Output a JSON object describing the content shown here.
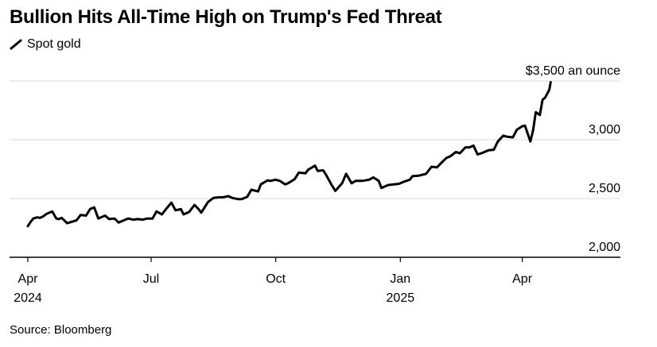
{
  "title": "Bullion Hits All-Time High on Trump's Fed Threat",
  "legend": {
    "label": "Spot gold",
    "icon": "line-swatch-icon"
  },
  "source": "Source: Bloomberg",
  "colors": {
    "line": "#000000",
    "grid": "#d9d9d9",
    "axis": "#000000",
    "text": "#000000"
  },
  "chart_data": {
    "type": "line",
    "title": "Bullion Hits All-Time High on Trump's Fed Threat",
    "xlabel": "",
    "ylabel": "",
    "ylim": [
      2000,
      3500
    ],
    "xlim": [
      "2024-04-01",
      "2025-05-10"
    ],
    "grid": true,
    "legend_position": "top-left",
    "y_ticks": [
      {
        "value": 2000,
        "label": "2,000"
      },
      {
        "value": 2500,
        "label": "2,500"
      },
      {
        "value": 3000,
        "label": "3,000"
      },
      {
        "value": 3500,
        "label": "$3,500 an ounce"
      }
    ],
    "x_ticks": [
      {
        "date": "2024-04-01",
        "label": "Apr",
        "sublabel": "2024"
      },
      {
        "date": "2024-07-01",
        "label": "Jul",
        "sublabel": ""
      },
      {
        "date": "2024-10-01",
        "label": "Oct",
        "sublabel": ""
      },
      {
        "date": "2025-01-01",
        "label": "Jan",
        "sublabel": "2025"
      },
      {
        "date": "2025-04-01",
        "label": "Apr",
        "sublabel": ""
      }
    ],
    "series": [
      {
        "name": "Spot gold",
        "points": [
          [
            "2024-04-01",
            2265
          ],
          [
            "2024-04-03",
            2300
          ],
          [
            "2024-04-05",
            2330
          ],
          [
            "2024-04-08",
            2340
          ],
          [
            "2024-04-10",
            2335
          ],
          [
            "2024-04-12",
            2345
          ],
          [
            "2024-04-15",
            2370
          ],
          [
            "2024-04-17",
            2380
          ],
          [
            "2024-04-19",
            2390
          ],
          [
            "2024-04-22",
            2330
          ],
          [
            "2024-04-24",
            2325
          ],
          [
            "2024-04-26",
            2335
          ],
          [
            "2024-04-30",
            2290
          ],
          [
            "2024-05-03",
            2300
          ],
          [
            "2024-05-07",
            2315
          ],
          [
            "2024-05-10",
            2360
          ],
          [
            "2024-05-14",
            2355
          ],
          [
            "2024-05-17",
            2410
          ],
          [
            "2024-05-20",
            2425
          ],
          [
            "2024-05-23",
            2330
          ],
          [
            "2024-05-28",
            2355
          ],
          [
            "2024-05-31",
            2325
          ],
          [
            "2024-06-04",
            2330
          ],
          [
            "2024-06-07",
            2295
          ],
          [
            "2024-06-11",
            2315
          ],
          [
            "2024-06-14",
            2330
          ],
          [
            "2024-06-18",
            2320
          ],
          [
            "2024-06-21",
            2325
          ],
          [
            "2024-06-25",
            2320
          ],
          [
            "2024-06-28",
            2330
          ],
          [
            "2024-07-02",
            2330
          ],
          [
            "2024-07-05",
            2390
          ],
          [
            "2024-07-09",
            2365
          ],
          [
            "2024-07-12",
            2410
          ],
          [
            "2024-07-16",
            2465
          ],
          [
            "2024-07-19",
            2400
          ],
          [
            "2024-07-23",
            2410
          ],
          [
            "2024-07-25",
            2365
          ],
          [
            "2024-07-29",
            2385
          ],
          [
            "2024-08-02",
            2445
          ],
          [
            "2024-08-05",
            2410
          ],
          [
            "2024-08-07",
            2380
          ],
          [
            "2024-08-12",
            2470
          ],
          [
            "2024-08-16",
            2505
          ],
          [
            "2024-08-20",
            2510
          ],
          [
            "2024-08-23",
            2510
          ],
          [
            "2024-08-27",
            2520
          ],
          [
            "2024-08-30",
            2505
          ],
          [
            "2024-09-03",
            2495
          ],
          [
            "2024-09-06",
            2495
          ],
          [
            "2024-09-10",
            2515
          ],
          [
            "2024-09-13",
            2575
          ],
          [
            "2024-09-18",
            2560
          ],
          [
            "2024-09-20",
            2620
          ],
          [
            "2024-09-25",
            2655
          ],
          [
            "2024-09-27",
            2650
          ],
          [
            "2024-10-01",
            2660
          ],
          [
            "2024-10-04",
            2650
          ],
          [
            "2024-10-08",
            2620
          ],
          [
            "2024-10-10",
            2630
          ],
          [
            "2024-10-15",
            2665
          ],
          [
            "2024-10-18",
            2720
          ],
          [
            "2024-10-23",
            2715
          ],
          [
            "2024-10-25",
            2745
          ],
          [
            "2024-10-30",
            2780
          ],
          [
            "2024-11-01",
            2735
          ],
          [
            "2024-11-05",
            2740
          ],
          [
            "2024-11-07",
            2705
          ],
          [
            "2024-11-11",
            2620
          ],
          [
            "2024-11-14",
            2565
          ],
          [
            "2024-11-19",
            2630
          ],
          [
            "2024-11-22",
            2710
          ],
          [
            "2024-11-26",
            2630
          ],
          [
            "2024-11-29",
            2650
          ],
          [
            "2024-12-04",
            2650
          ],
          [
            "2024-12-09",
            2660
          ],
          [
            "2024-12-12",
            2680
          ],
          [
            "2024-12-16",
            2650
          ],
          [
            "2024-12-18",
            2590
          ],
          [
            "2024-12-23",
            2615
          ],
          [
            "2024-12-27",
            2620
          ],
          [
            "2024-12-31",
            2625
          ],
          [
            "2025-01-03",
            2640
          ],
          [
            "2025-01-08",
            2660
          ],
          [
            "2025-01-10",
            2690
          ],
          [
            "2025-01-15",
            2695
          ],
          [
            "2025-01-20",
            2710
          ],
          [
            "2025-01-24",
            2770
          ],
          [
            "2025-01-28",
            2765
          ],
          [
            "2025-01-31",
            2800
          ],
          [
            "2025-02-04",
            2845
          ],
          [
            "2025-02-07",
            2860
          ],
          [
            "2025-02-11",
            2895
          ],
          [
            "2025-02-14",
            2885
          ],
          [
            "2025-02-18",
            2935
          ],
          [
            "2025-02-21",
            2935
          ],
          [
            "2025-02-24",
            2950
          ],
          [
            "2025-02-27",
            2875
          ],
          [
            "2025-03-03",
            2890
          ],
          [
            "2025-03-07",
            2910
          ],
          [
            "2025-03-11",
            2915
          ],
          [
            "2025-03-14",
            2985
          ],
          [
            "2025-03-18",
            3035
          ],
          [
            "2025-03-21",
            3025
          ],
          [
            "2025-03-25",
            3020
          ],
          [
            "2025-03-28",
            3085
          ],
          [
            "2025-04-01",
            3115
          ],
          [
            "2025-04-03",
            3120
          ],
          [
            "2025-04-07",
            2985
          ],
          [
            "2025-04-09",
            3080
          ],
          [
            "2025-04-11",
            3235
          ],
          [
            "2025-04-14",
            3210
          ],
          [
            "2025-04-16",
            3340
          ],
          [
            "2025-04-18",
            3360
          ],
          [
            "2025-04-21",
            3425
          ],
          [
            "2025-04-22",
            3490
          ]
        ]
      }
    ]
  }
}
